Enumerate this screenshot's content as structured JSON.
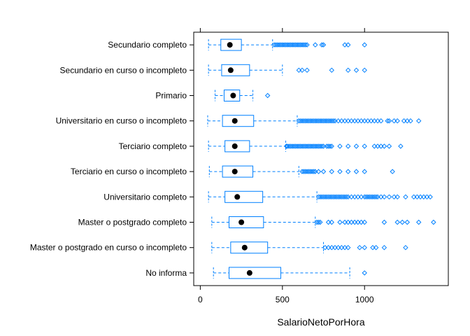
{
  "chart_data": {
    "type": "boxplot",
    "xlabel": "SalarioNetoPorHora",
    "xlim": [
      -40,
      1510
    ],
    "xticks": [
      0,
      500,
      1000
    ],
    "box_color": "#0080ff",
    "median_color": "#000000",
    "categories": [
      {
        "label": "Secundario completo",
        "whisker_low": 50,
        "q1": 125,
        "median": 180,
        "q3": 250,
        "whisker_high": 440,
        "outliers": [
          450,
          460,
          470,
          480,
          490,
          500,
          510,
          520,
          530,
          540,
          550,
          560,
          570,
          580,
          590,
          600,
          610,
          620,
          630,
          640,
          650,
          700,
          740,
          750,
          880,
          900,
          1000
        ]
      },
      {
        "label": "Secundario en curso o incompleto",
        "whisker_low": 50,
        "q1": 130,
        "median": 185,
        "q3": 300,
        "whisker_high": 500,
        "outliers": [
          600,
          620,
          650,
          800,
          900,
          950,
          1000
        ]
      },
      {
        "label": "Primario",
        "whisker_low": 90,
        "q1": 145,
        "median": 200,
        "q3": 240,
        "whisker_high": 320,
        "outliers": [
          410
        ]
      },
      {
        "label": "Universitario en curso o incompleto",
        "whisker_low": 45,
        "q1": 135,
        "median": 210,
        "q3": 325,
        "whisker_high": 590,
        "outliers": [
          600,
          610,
          620,
          630,
          640,
          650,
          660,
          670,
          680,
          690,
          700,
          710,
          720,
          730,
          740,
          750,
          760,
          770,
          780,
          790,
          800,
          810,
          820,
          840,
          860,
          880,
          900,
          920,
          940,
          960,
          980,
          1000,
          1020,
          1040,
          1060,
          1080,
          1100,
          1140,
          1150,
          1180,
          1200,
          1240,
          1260,
          1280,
          1330
        ]
      },
      {
        "label": "Terciario completo",
        "whisker_low": 50,
        "q1": 150,
        "median": 210,
        "q3": 300,
        "whisker_high": 520,
        "outliers": [
          525,
          530,
          540,
          550,
          560,
          570,
          580,
          590,
          600,
          610,
          620,
          630,
          640,
          650,
          660,
          670,
          680,
          690,
          700,
          710,
          720,
          730,
          740,
          750,
          770,
          780,
          790,
          800,
          850,
          900,
          950,
          1000,
          1060,
          1080,
          1100,
          1120,
          1150,
          1220
        ]
      },
      {
        "label": "Terciario en curso o incompleto",
        "whisker_low": 55,
        "q1": 135,
        "median": 210,
        "q3": 320,
        "whisker_high": 600,
        "outliers": [
          620,
          630,
          640,
          650,
          660,
          670,
          680,
          690,
          700,
          720,
          750,
          800,
          850,
          900,
          950,
          1000,
          1170
        ]
      },
      {
        "label": "Universitario completo",
        "whisker_low": 50,
        "q1": 150,
        "median": 225,
        "q3": 380,
        "whisker_high": 710,
        "outliers": [
          720,
          730,
          740,
          750,
          760,
          770,
          780,
          790,
          800,
          810,
          820,
          830,
          840,
          850,
          860,
          870,
          880,
          890,
          900,
          920,
          940,
          960,
          980,
          1000,
          1010,
          1020,
          1030,
          1040,
          1050,
          1060,
          1070,
          1080,
          1100,
          1120,
          1150,
          1180,
          1200,
          1250,
          1300,
          1320,
          1340,
          1360,
          1380,
          1400
        ]
      },
      {
        "label": "Master o postgrado completo",
        "whisker_low": 70,
        "q1": 175,
        "median": 250,
        "q3": 385,
        "whisker_high": 700,
        "outliers": [
          710,
          720,
          730,
          780,
          800,
          850,
          880,
          900,
          920,
          940,
          960,
          980,
          1000,
          1120,
          1200,
          1230,
          1260,
          1330,
          1420
        ]
      },
      {
        "label": "Master o postgrado en curso o incompleto",
        "whisker_low": 70,
        "q1": 185,
        "median": 270,
        "q3": 410,
        "whisker_high": 750,
        "outliers": [
          760,
          780,
          800,
          820,
          840,
          860,
          880,
          900,
          970,
          1000,
          1050,
          1070,
          1120,
          1250
        ]
      },
      {
        "label": "No informa",
        "whisker_low": 80,
        "q1": 175,
        "median": 300,
        "q3": 490,
        "whisker_high": 910,
        "outliers": [
          1000
        ]
      }
    ]
  }
}
